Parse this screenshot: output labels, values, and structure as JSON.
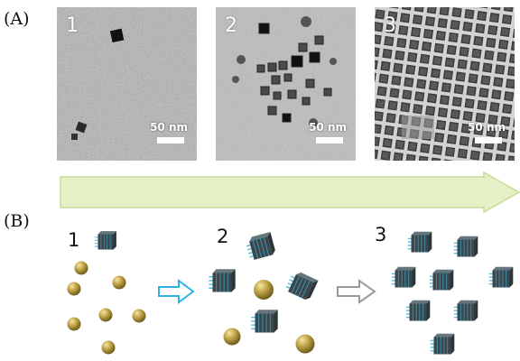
{
  "panel_a": {
    "label": "(A)",
    "micrographs": [
      {
        "number": "1",
        "scale": "50 nm"
      },
      {
        "number": "2",
        "scale": "50 nm"
      },
      {
        "number": "3",
        "scale": "50 nm"
      }
    ]
  },
  "panel_b": {
    "label": "(B)",
    "stages": [
      "1",
      "2",
      "3"
    ]
  },
  "colors": {
    "arrow_fill": "#e4f0c6",
    "arrow_stroke": "#c7dc96",
    "particle_gold": "#b59a3c",
    "cube_dark": "#3c474c",
    "ligand_blue": "#39b6e0",
    "transition_arrow_blue": "#2fb1e3",
    "transition_arrow_gray": "#9a9a9a"
  }
}
